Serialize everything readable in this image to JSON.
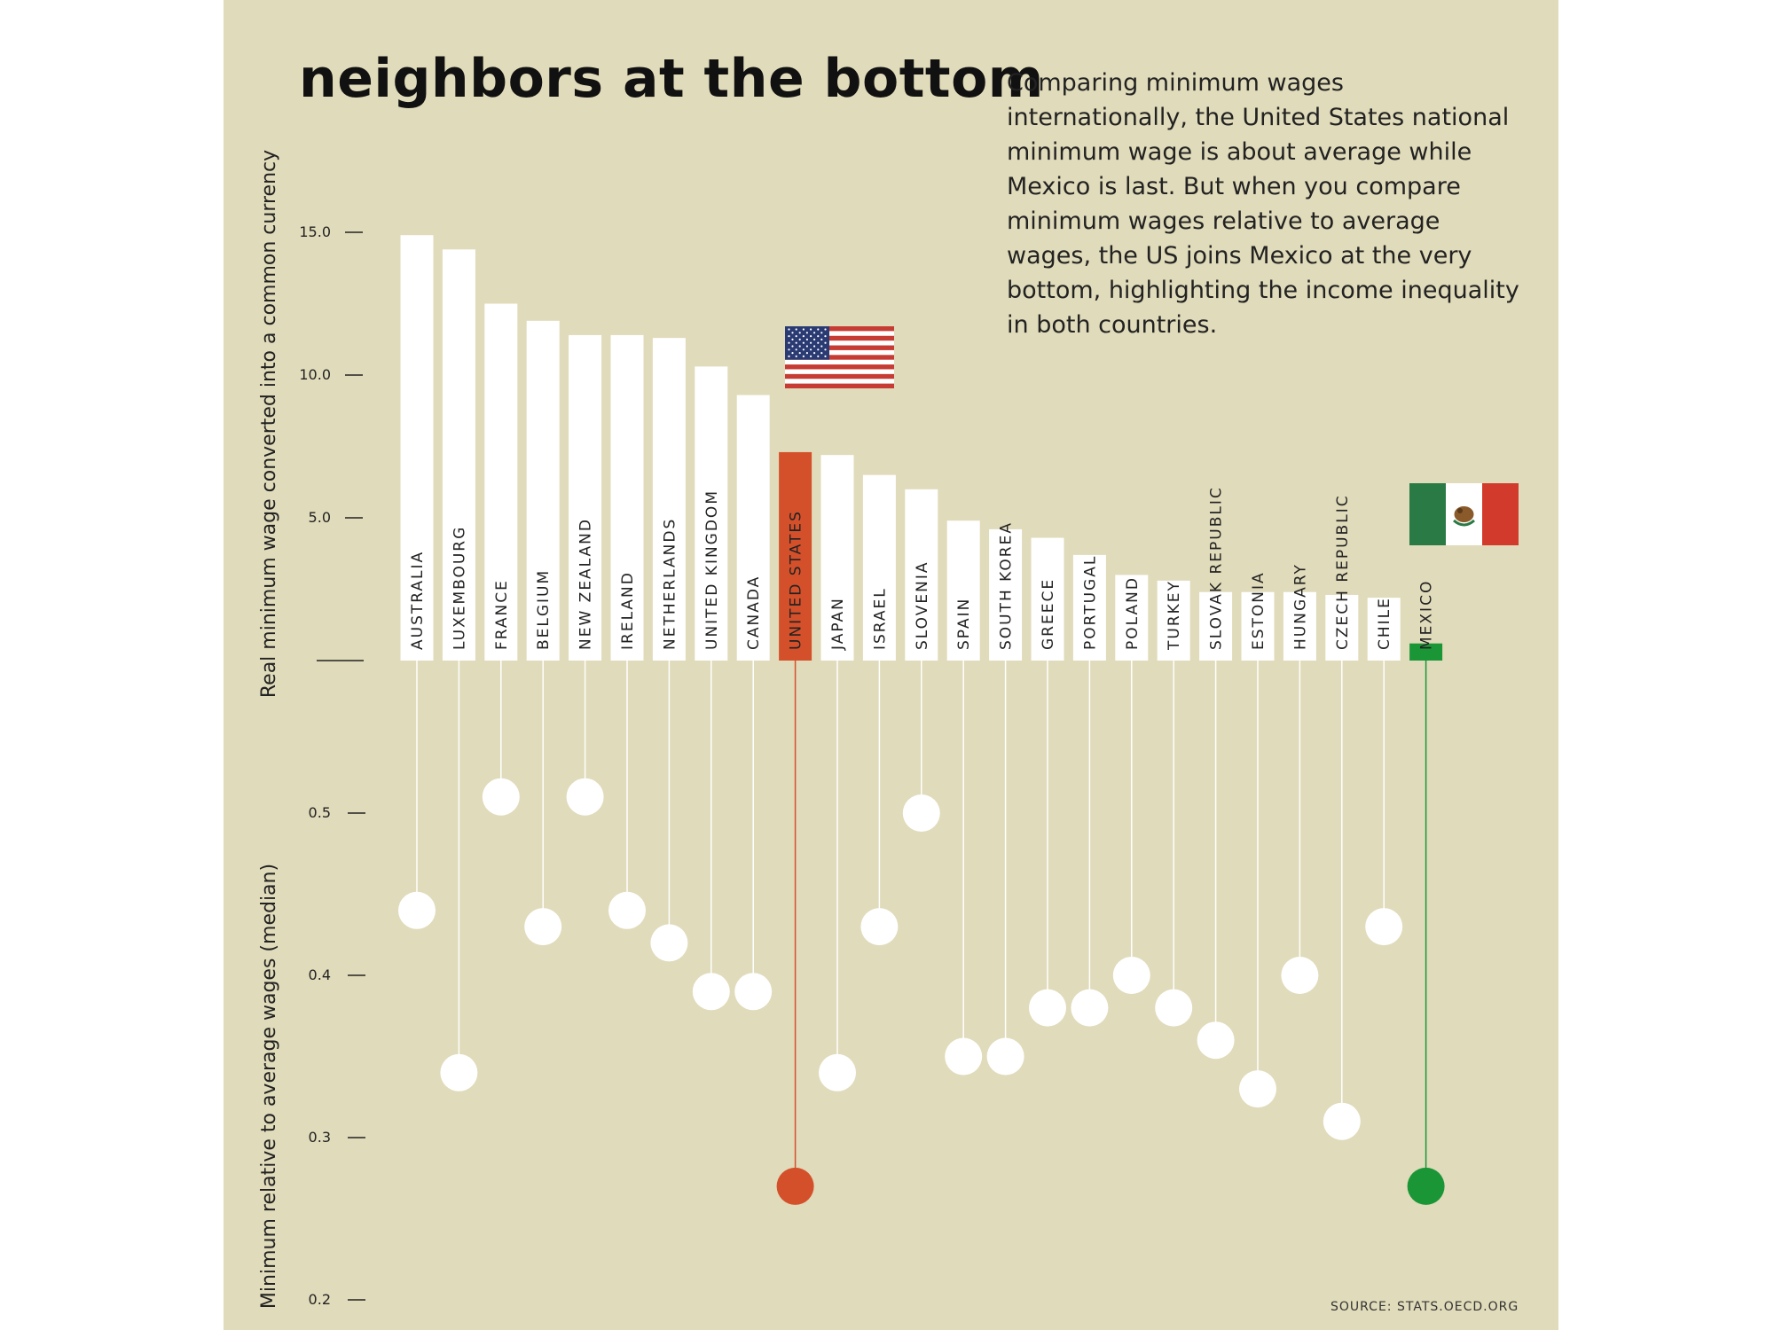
{
  "title": "neighbors at the bottom",
  "description": "Comparing minimum wages internationally, the United States national minimum wage is about average while Mexico is last. But when you compare minimum wages relative to average wages, the US joins Mexico at the very bottom, highlighting the income inequality in both countries.",
  "source": "SOURCE: STATS.OECD.ORG",
  "colors": {
    "background": "#e0dbba",
    "bar": "#ffffff",
    "us_highlight": "#d4502b",
    "mexico_highlight": "#1a9637"
  },
  "chart_data": [
    {
      "type": "bar",
      "ylabel": "Real minimum wage converted into a common currency",
      "ylim": [
        0,
        16
      ],
      "yticks": [
        5.0,
        10.0,
        15.0
      ],
      "ytick_labels": [
        "5.0",
        "10.0",
        "15.0"
      ],
      "categories": [
        "AUSTRALIA",
        "LUXEMBOURG",
        "FRANCE",
        "BELGIUM",
        "NEW ZEALAND",
        "IRELAND",
        "NETHERLANDS",
        "UNITED KINGDOM",
        "CANADA",
        "UNITED STATES",
        "JAPAN",
        "ISRAEL",
        "SLOVENIA",
        "SPAIN",
        "SOUTH KOREA",
        "GREECE",
        "PORTUGAL",
        "POLAND",
        "TURKEY",
        "SLOVAK REPUBLIC",
        "ESTONIA",
        "HUNGARY",
        "CZECH REPUBLIC",
        "CHILE",
        "MEXICO"
      ],
      "values": [
        14.9,
        14.4,
        12.5,
        11.9,
        11.4,
        11.4,
        11.3,
        10.3,
        9.3,
        7.3,
        7.2,
        6.5,
        6.0,
        4.9,
        4.6,
        4.3,
        3.7,
        3.0,
        2.8,
        2.4,
        2.4,
        2.4,
        2.3,
        2.2,
        0.6
      ]
    },
    {
      "type": "scatter",
      "ylabel": "Minimum relative to average wages (median)",
      "ylim": [
        0.2,
        0.6
      ],
      "yticks": [
        0.2,
        0.3,
        0.4,
        0.5
      ],
      "ytick_labels": [
        "0.2",
        "0.3",
        "0.4",
        "0.5"
      ],
      "categories": [
        "AUSTRALIA",
        "LUXEMBOURG",
        "FRANCE",
        "BELGIUM",
        "NEW ZEALAND",
        "IRELAND",
        "NETHERLANDS",
        "UNITED KINGDOM",
        "CANADA",
        "UNITED STATES",
        "JAPAN",
        "ISRAEL",
        "SLOVENIA",
        "SPAIN",
        "SOUTH KOREA",
        "GREECE",
        "PORTUGAL",
        "POLAND",
        "TURKEY",
        "SLOVAK REPUBLIC",
        "ESTONIA",
        "HUNGARY",
        "CZECH REPUBLIC",
        "CHILE",
        "MEXICO"
      ],
      "values": [
        0.44,
        0.34,
        0.51,
        0.43,
        0.51,
        0.44,
        0.42,
        0.39,
        0.39,
        0.27,
        0.34,
        0.43,
        0.5,
        0.35,
        0.35,
        0.38,
        0.38,
        0.4,
        0.38,
        0.36,
        0.33,
        0.4,
        0.31,
        0.43,
        0.27
      ]
    }
  ],
  "flags": {
    "us": "us-flag-icon",
    "mexico": "mexico-flag-icon"
  }
}
